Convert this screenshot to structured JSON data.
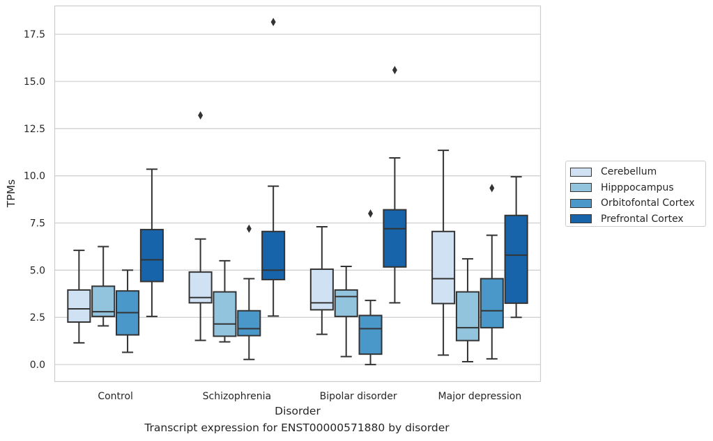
{
  "caption": "Transcript expression for ENST00000571880 by disorder",
  "colors": {
    "Cerebellum": "#cfe1f2",
    "Hipppocampus": "#93c4de",
    "Orbitofontal Cortex": "#4a98c9",
    "Prefrontal Cortex": "#1764ab",
    "grid": "#cccccc",
    "line": "#333333"
  },
  "chart_data": {
    "type": "boxplot",
    "xlabel": "Disorder",
    "ylabel": "TPMs",
    "ylim": [
      -0.9,
      19.0
    ],
    "yticks": [
      "0.0",
      "2.5",
      "5.0",
      "7.5",
      "10.0",
      "12.5",
      "15.0",
      "17.5"
    ],
    "grid": true,
    "legend_position": "right",
    "categories": [
      "Control",
      "Schizophrenia",
      "Bipolar disorder",
      "Major depression"
    ],
    "series": [
      {
        "name": "Cerebellum",
        "boxes": [
          {
            "low": 1.15,
            "q1": 2.25,
            "median": 2.95,
            "q3": 3.95,
            "high": 6.05,
            "outliers": []
          },
          {
            "low": 1.28,
            "q1": 3.27,
            "median": 3.55,
            "q3": 4.9,
            "high": 6.65,
            "outliers": [
              13.2
            ]
          },
          {
            "low": 1.6,
            "q1": 2.9,
            "median": 3.27,
            "q3": 5.05,
            "high": 7.3,
            "outliers": []
          },
          {
            "low": 0.5,
            "q1": 3.23,
            "median": 4.55,
            "q3": 7.05,
            "high": 11.35,
            "outliers": []
          }
        ]
      },
      {
        "name": "Hipppocampus",
        "boxes": [
          {
            "low": 2.05,
            "q1": 2.55,
            "median": 2.8,
            "q3": 4.15,
            "high": 6.25,
            "outliers": []
          },
          {
            "low": 1.2,
            "q1": 1.5,
            "median": 2.15,
            "q3": 3.85,
            "high": 5.5,
            "outliers": []
          },
          {
            "low": 0.42,
            "q1": 2.55,
            "median": 3.6,
            "q3": 3.95,
            "high": 5.2,
            "outliers": []
          },
          {
            "low": 0.15,
            "q1": 1.27,
            "median": 1.95,
            "q3": 3.85,
            "high": 5.6,
            "outliers": []
          }
        ]
      },
      {
        "name": "Orbitofontal Cortex",
        "boxes": [
          {
            "low": 0.65,
            "q1": 1.57,
            "median": 2.75,
            "q3": 3.9,
            "high": 5.0,
            "outliers": []
          },
          {
            "low": 0.27,
            "q1": 1.53,
            "median": 1.9,
            "q3": 2.85,
            "high": 4.55,
            "outliers": [
              7.2
            ]
          },
          {
            "low": 0.0,
            "q1": 0.55,
            "median": 1.9,
            "q3": 2.6,
            "high": 3.4,
            "outliers": [
              8.0
            ]
          },
          {
            "low": 0.3,
            "q1": 1.95,
            "median": 2.85,
            "q3": 4.55,
            "high": 6.85,
            "outliers": [
              9.35
            ]
          }
        ]
      },
      {
        "name": "Prefrontal Cortex",
        "boxes": [
          {
            "low": 2.55,
            "q1": 4.4,
            "median": 5.55,
            "q3": 7.15,
            "high": 10.35,
            "outliers": []
          },
          {
            "low": 2.57,
            "q1": 4.5,
            "median": 5.0,
            "q3": 7.05,
            "high": 9.45,
            "outliers": [
              18.15
            ]
          },
          {
            "low": 3.27,
            "q1": 5.17,
            "median": 7.2,
            "q3": 8.2,
            "high": 10.95,
            "outliers": [
              15.6
            ]
          },
          {
            "low": 2.5,
            "q1": 3.25,
            "median": 5.8,
            "q3": 7.9,
            "high": 9.95,
            "outliers": []
          }
        ]
      }
    ]
  }
}
